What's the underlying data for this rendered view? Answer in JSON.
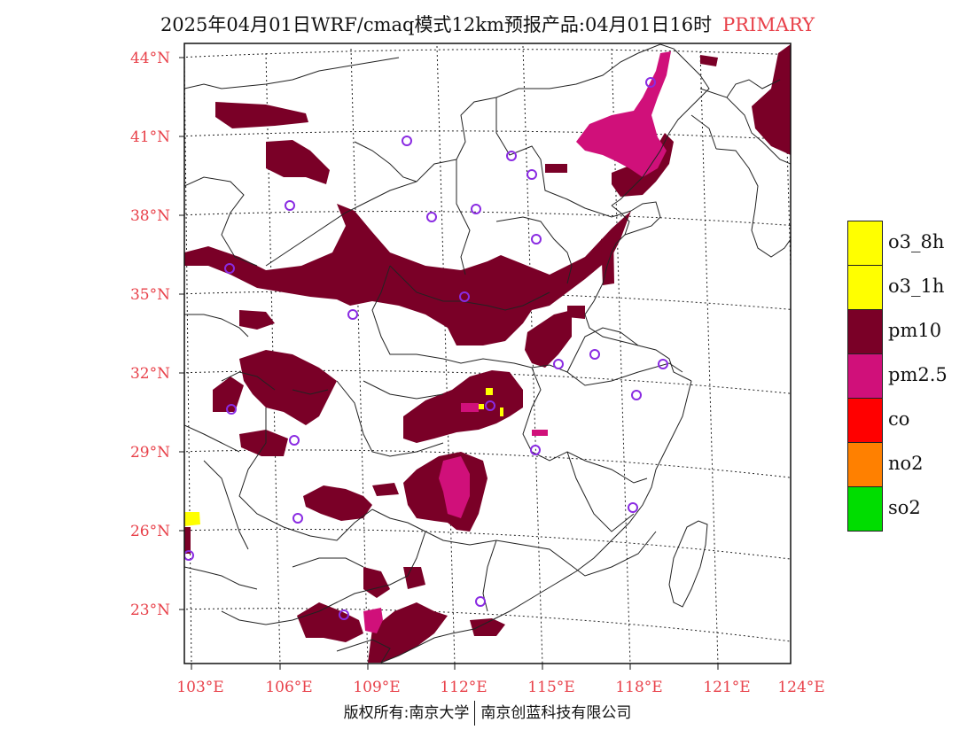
{
  "title": {
    "main": "2025年04月01日WRF/cmaq模式12km预报产品:04月01日16时",
    "tag": "PRIMARY",
    "tag_color": "#e8414a"
  },
  "axes": {
    "lat_labels": [
      "44°N",
      "41°N",
      "38°N",
      "35°N",
      "32°N",
      "29°N",
      "26°N",
      "23°N"
    ],
    "lon_labels": [
      "103°E",
      "106°E",
      "109°E",
      "112°E",
      "115°E",
      "118°E",
      "121°E",
      "124°E"
    ],
    "label_color": "#e8414a"
  },
  "legend": [
    {
      "label": "o3_8h",
      "color": "#ffff00"
    },
    {
      "label": "o3_1h",
      "color": "#ffff00"
    },
    {
      "label": "pm10",
      "color": "#7a0027"
    },
    {
      "label": "pm2.5",
      "color": "#d0107a"
    },
    {
      "label": "co",
      "color": "#ff0000"
    },
    {
      "label": "no2",
      "color": "#ff8000"
    },
    {
      "label": "so2",
      "color": "#00dd00"
    }
  ],
  "footer": {
    "left": "版权所有:南京大学",
    "right": "南京创蓝科技有限公司"
  },
  "colors": {
    "pm10": "#7a0027",
    "pm25": "#d0107a",
    "o3": "#ffff00",
    "station": "#8a2be2"
  }
}
